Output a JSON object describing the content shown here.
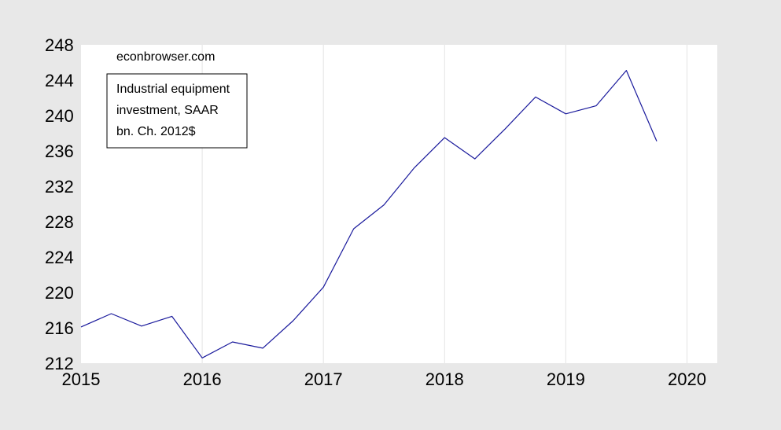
{
  "chart_data": {
    "type": "line",
    "watermark": "econbrowser.com",
    "legend_lines": [
      "Industrial equipment",
      "investment, SAAR",
      "bn. Ch. 2012$"
    ],
    "legend_placement": "top-left",
    "xlim": [
      2015,
      2020.25
    ],
    "ylim": [
      212,
      248
    ],
    "x_ticks": [
      2015,
      2016,
      2017,
      2018,
      2019,
      2020
    ],
    "x_tick_labels": [
      "2015",
      "2016",
      "2017",
      "2018",
      "2019",
      "2020"
    ],
    "y_ticks": [
      212,
      216,
      220,
      224,
      228,
      232,
      236,
      240,
      244,
      248
    ],
    "y_tick_labels": [
      "212",
      "216",
      "220",
      "224",
      "228",
      "232",
      "236",
      "240",
      "244",
      "248"
    ],
    "grid": "vertical",
    "series": [
      {
        "color": "#1a1a9c",
        "x": [
          "2015Q1",
          "2015Q2",
          "2015Q3",
          "2015Q4",
          "2016Q1",
          "2016Q2",
          "2016Q3",
          "2016Q4",
          "2017Q1",
          "2017Q2",
          "2017Q3",
          "2017Q4",
          "2018Q1",
          "2018Q2",
          "2018Q3",
          "2018Q4",
          "2019Q1",
          "2019Q2",
          "2019Q3",
          "2019Q4"
        ],
        "values": [
          216.1,
          217.6,
          216.2,
          217.3,
          212.6,
          214.4,
          213.7,
          216.8,
          220.6,
          227.2,
          229.9,
          234.1,
          237.5,
          235.1,
          238.5,
          242.1,
          240.2,
          241.1,
          245.1,
          237.1
        ]
      }
    ]
  }
}
